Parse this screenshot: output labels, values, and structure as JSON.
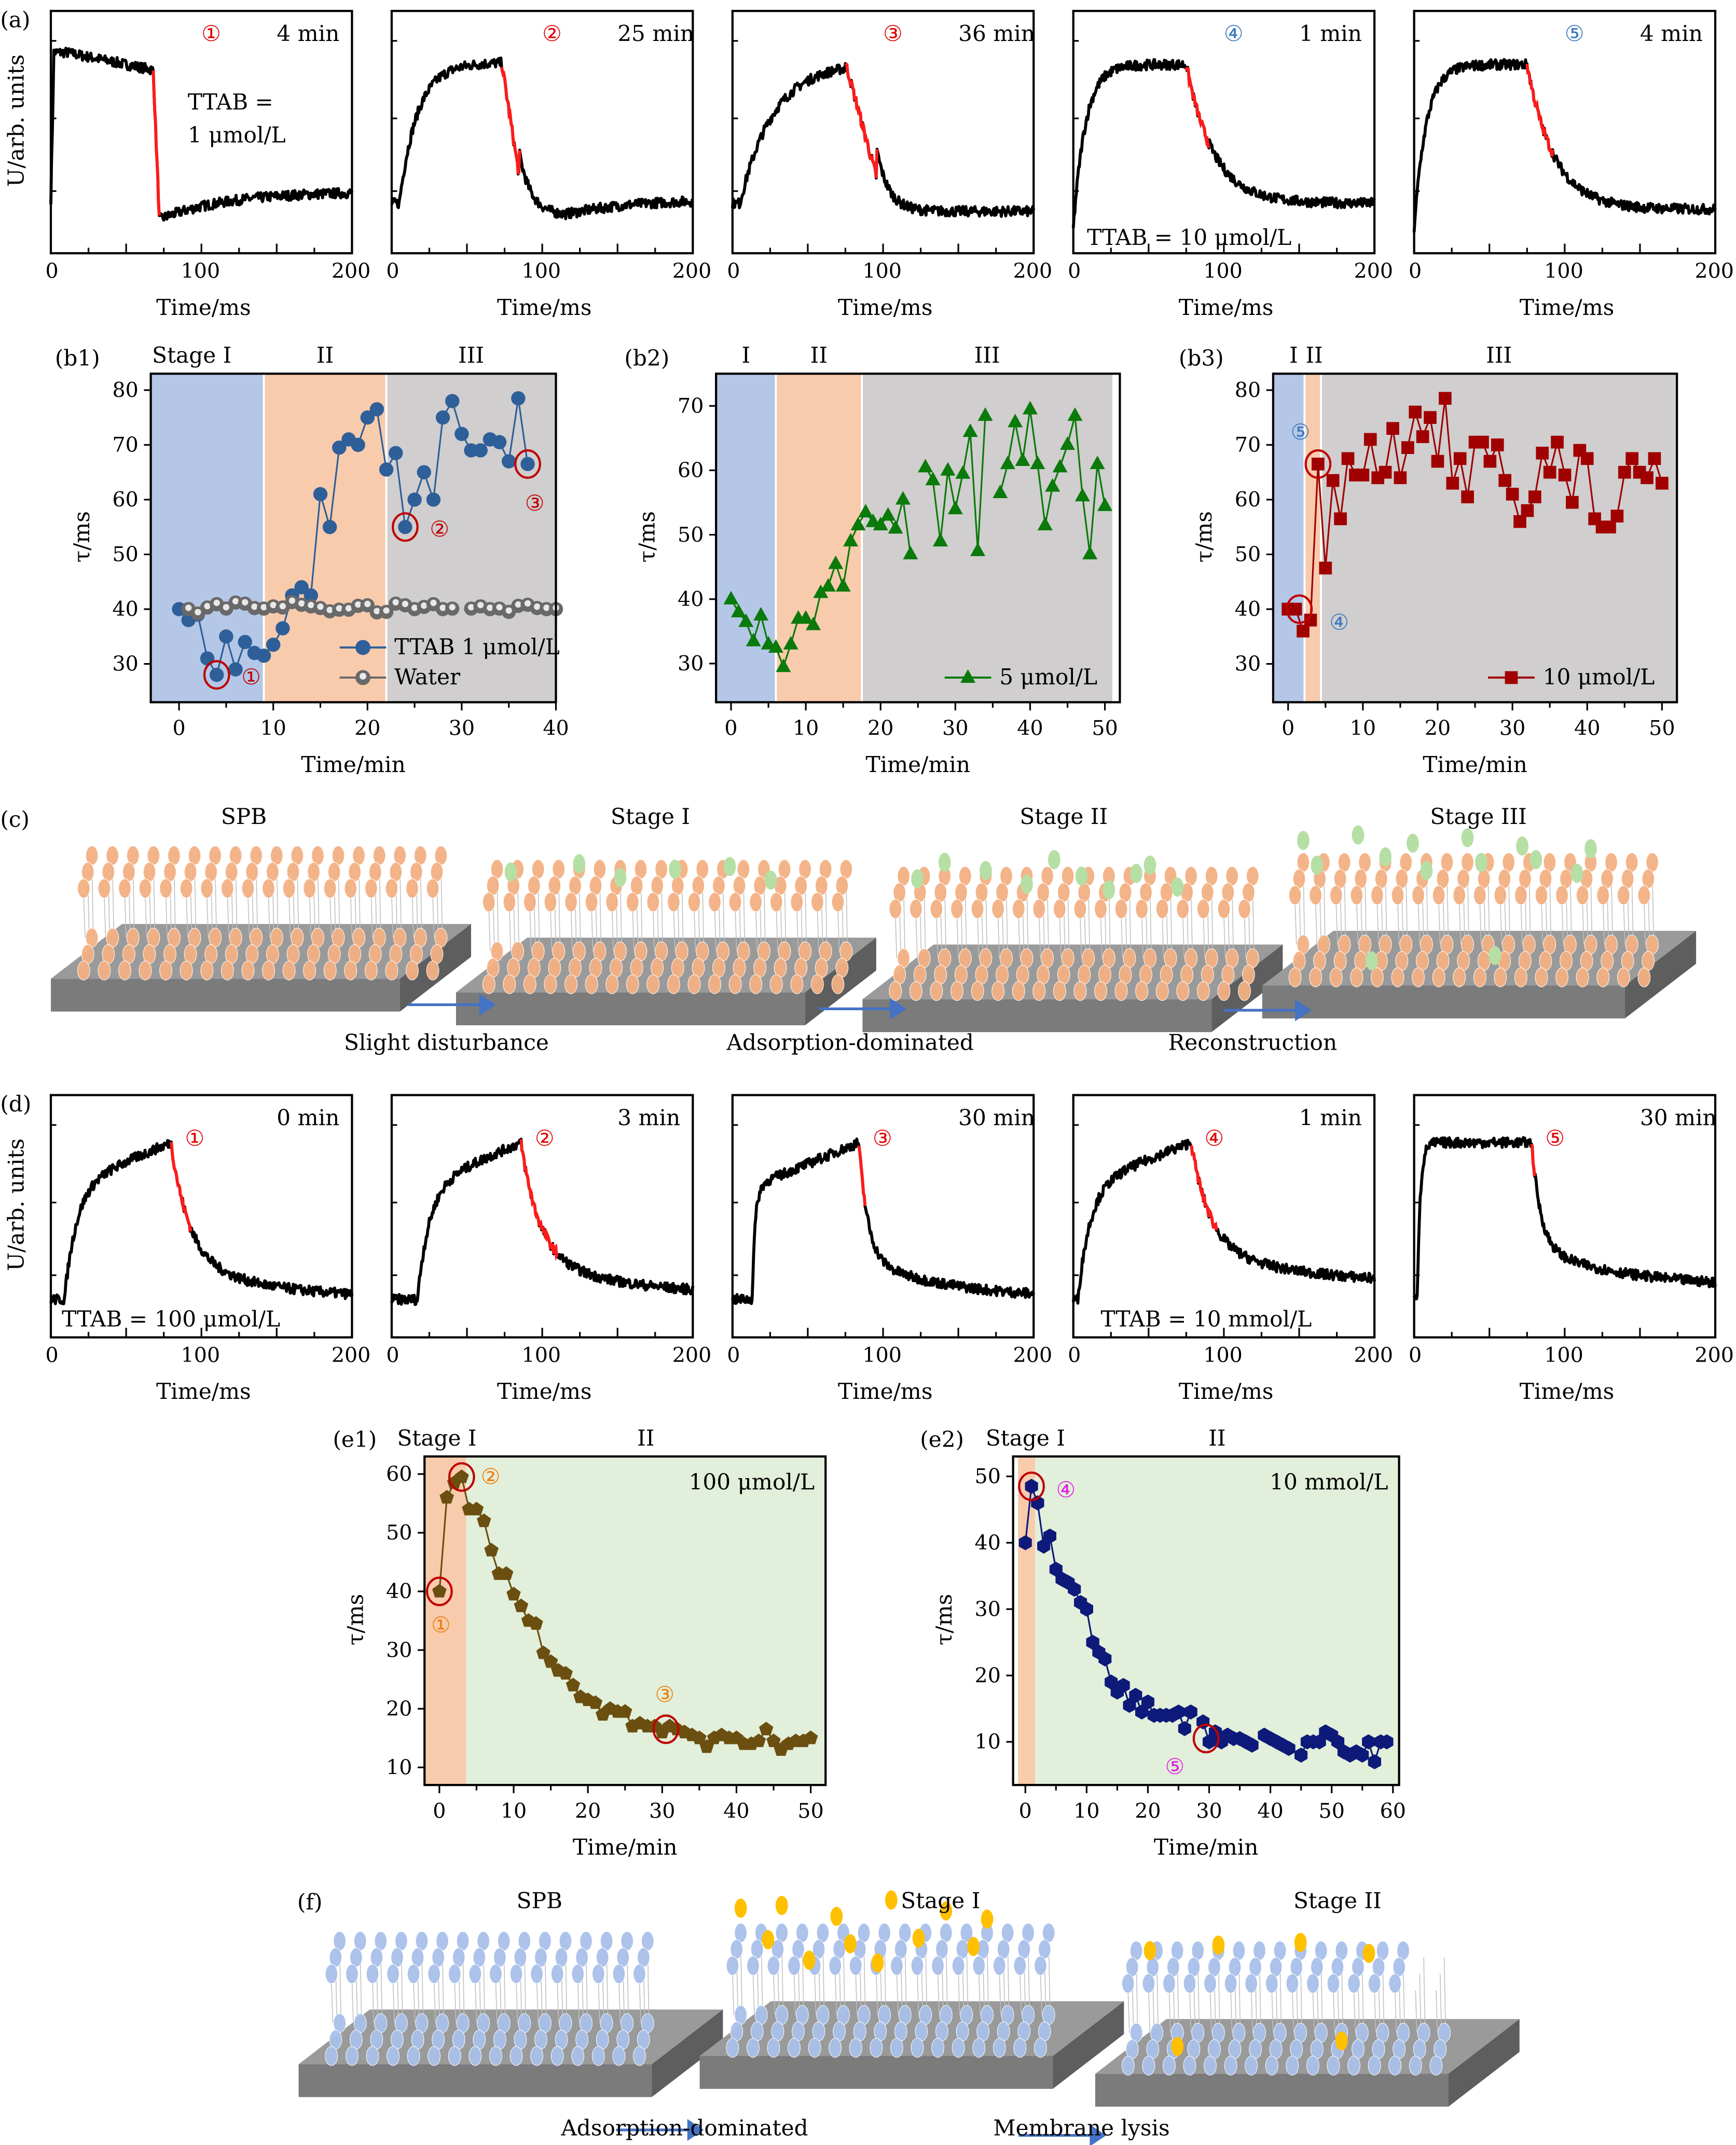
{
  "figure": {
    "panel_labels": {
      "a": "(a)",
      "b1": "(b1)",
      "b2": "(b2)",
      "b3": "(b3)",
      "c": "(c)",
      "d": "(d)",
      "e1": "(e1)",
      "e2": "(e2)",
      "f": "(f)"
    },
    "colors": {
      "stage1_bg": "#b4c7e7",
      "stage2_bg": "#f8cbad",
      "stage3_bg": "#d0cece",
      "green_bg": "#e2efda",
      "red_fit": "#ff0000",
      "circle": "#c00000",
      "blue_marker": "#2e5f98",
      "water_marker": "#696969",
      "green_marker": "#0a7a0a",
      "darkred_marker": "#a00000",
      "brown_marker": "#6b4f10",
      "navy_marker": "#0d1a7a",
      "lipid_orange": "#f4b183",
      "tt_green": "#b6dfa5",
      "lipid_blue": "#a9c0ea",
      "tt_yellow": "#ffc000",
      "arrow_blue": "#4472c4"
    }
  },
  "panel_a": {
    "ylabel": "U/arb. units",
    "xlabel": "Time/ms",
    "xticks": [
      "0",
      "100",
      "200"
    ],
    "plots": [
      {
        "marker": "①",
        "marker_color": "#e00000",
        "time": "4 min",
        "note": [
          "TTAB =",
          "1 μmol/L"
        ]
      },
      {
        "marker": "②",
        "marker_color": "#e00000",
        "time": "25 min",
        "note": []
      },
      {
        "marker": "③",
        "marker_color": "#e00000",
        "time": "36 min",
        "note": []
      },
      {
        "marker": "④",
        "marker_color": "#3a78c0",
        "time": "1 min",
        "note": [
          "TTAB = 10 μmol/L"
        ]
      },
      {
        "marker": "⑤",
        "marker_color": "#3a78c0",
        "time": "4 min",
        "note": []
      }
    ]
  },
  "panel_d": {
    "ylabel": "U/arb. units",
    "xlabel": "Time/ms",
    "xticks": [
      "0",
      "100",
      "200"
    ],
    "plots": [
      {
        "marker": "①",
        "marker_color": "#e00000",
        "time": "0 min",
        "note": [
          "TTAB = 100 μmol/L"
        ]
      },
      {
        "marker": "②",
        "marker_color": "#e00000",
        "time": "3 min",
        "note": []
      },
      {
        "marker": "③",
        "marker_color": "#e00000",
        "time": "30 min",
        "note": []
      },
      {
        "marker": "④",
        "marker_color": "#e00000",
        "time": "1 min",
        "note": [
          "TTAB = 10 mmol/L"
        ]
      },
      {
        "marker": "⑤",
        "marker_color": "#e00000",
        "time": "30 min",
        "note": []
      }
    ]
  },
  "chart_data": [
    {
      "id": "b1",
      "type": "line",
      "title": "",
      "xlabel": "Time/min",
      "ylabel": "τ/ms",
      "xlim": [
        -3,
        40
      ],
      "ylim": [
        23,
        83
      ],
      "xticks": [
        0,
        10,
        20,
        30,
        40
      ],
      "yticks": [
        30,
        40,
        50,
        60,
        70,
        80
      ],
      "stages": [
        {
          "label": "Stage I",
          "from": -3,
          "to": 9
        },
        {
          "label": "II",
          "from": 9,
          "to": 22
        },
        {
          "label": "III",
          "from": 22,
          "to": 40
        }
      ],
      "legend": "bottom-right",
      "series": [
        {
          "name": "TTAB 1 μmol/L",
          "marker": "circle",
          "color": "#2e5f98",
          "x": [
            0,
            1,
            2,
            3,
            4,
            5,
            6,
            7,
            8,
            9,
            10,
            11,
            12,
            13,
            14,
            15,
            16,
            17,
            18,
            19,
            20,
            21,
            22,
            23,
            24,
            25,
            26,
            27,
            28,
            29,
            30,
            31,
            32,
            33,
            34,
            35,
            36,
            37
          ],
          "y": [
            40,
            38,
            39,
            31,
            28,
            35,
            29,
            34,
            32,
            31.5,
            33.5,
            36.5,
            42.5,
            44,
            42.5,
            61,
            55,
            69.5,
            71,
            70,
            75,
            76.5,
            65.5,
            68.5,
            55,
            60,
            65,
            60,
            75,
            78,
            72,
            69,
            69,
            71,
            70.5,
            67,
            78.5,
            66.5
          ]
        },
        {
          "name": "Water",
          "marker": "circle-shaded",
          "color": "#696969",
          "x": [
            1,
            2,
            3,
            4,
            5,
            6,
            7,
            8,
            9,
            10,
            11,
            12,
            13,
            14,
            15,
            16,
            17,
            18,
            19,
            20,
            21,
            22,
            23,
            24,
            25,
            26,
            27,
            28,
            29,
            31,
            32,
            33,
            34,
            35,
            36,
            37,
            38,
            39,
            40
          ],
          "y": [
            40,
            39.2,
            40.3,
            40.9,
            40.1,
            41.2,
            41,
            40.2,
            40.1,
            40.5,
            40.3,
            41.3,
            40.8,
            40.5,
            40.2,
            39.6,
            39.9,
            39.9,
            40.6,
            40.7,
            39.4,
            39.5,
            41,
            40.7,
            40,
            40.4,
            40.9,
            40,
            40.1,
            40.1,
            40.5,
            40,
            40.1,
            39.5,
            40.6,
            40.8,
            40.2,
            40,
            40
          ],
          "gap_after_x": 29
        },
        {
          "name": "_markers",
          "points": [
            {
              "x": 4,
              "y": 28,
              "label": "①"
            },
            {
              "x": 24,
              "y": 55,
              "label": "②"
            },
            {
              "x": 37,
              "y": 66.5,
              "label": "③"
            }
          ]
        }
      ]
    },
    {
      "id": "b2",
      "type": "line",
      "title": "",
      "xlabel": "Time/min",
      "ylabel": "τ/ms",
      "xlim": [
        -2,
        52
      ],
      "ylim": [
        24,
        75
      ],
      "xticks": [
        0,
        10,
        20,
        30,
        40,
        50
      ],
      "yticks": [
        30,
        40,
        50,
        60,
        70
      ],
      "stages": [
        {
          "label": "I",
          "from": -2,
          "to": 6
        },
        {
          "label": "II",
          "from": 6,
          "to": 17.5
        },
        {
          "label": "III",
          "from": 17.5,
          "to": 51
        }
      ],
      "legend": "bottom-right",
      "series": [
        {
          "name": "5 μmol/L",
          "marker": "triangle",
          "color": "#0a7a0a",
          "x": [
            0,
            1,
            2,
            3,
            4,
            5,
            6,
            7,
            8,
            9,
            10,
            11,
            12,
            13,
            14,
            15,
            16,
            17,
            18,
            19,
            20,
            21,
            22,
            23,
            24,
            25,
            26,
            27,
            28,
            29,
            30,
            31,
            32,
            33,
            34,
            35,
            36,
            37,
            38,
            39,
            40,
            41,
            42,
            43,
            44,
            45,
            46,
            47,
            48,
            49,
            50
          ],
          "y": [
            40,
            38,
            36.5,
            33.5,
            37.5,
            33,
            32.5,
            29.5,
            33,
            37,
            37,
            36,
            41,
            42,
            45.5,
            42,
            49,
            51.5,
            53.5,
            52,
            51.5,
            53,
            51,
            55.5,
            47,
            null,
            60.5,
            58.5,
            49,
            60,
            54,
            59.5,
            66,
            47.5,
            68.5,
            null,
            56.5,
            61,
            67.5,
            61.5,
            69.5,
            61,
            51.5,
            57.5,
            60.5,
            64,
            68.5,
            56,
            47,
            61,
            54.5
          ]
        }
      ]
    },
    {
      "id": "b3",
      "type": "line",
      "title": "",
      "xlabel": "Time/min",
      "ylabel": "τ/ms",
      "xlim": [
        -2,
        52
      ],
      "ylim": [
        23,
        83
      ],
      "xticks": [
        0,
        10,
        20,
        30,
        40,
        50
      ],
      "yticks": [
        30,
        40,
        50,
        60,
        70,
        80
      ],
      "stages": [
        {
          "label": "I",
          "from": -2,
          "to": 2.2
        },
        {
          "label": "II",
          "from": 2.2,
          "to": 4.4
        },
        {
          "label": "III",
          "from": 4.4,
          "to": 52
        }
      ],
      "legend": "bottom-right",
      "series": [
        {
          "name": "10 μmol/L",
          "marker": "square",
          "color": "#a00000",
          "x": [
            0,
            1,
            2,
            3,
            4,
            5,
            6,
            7,
            8,
            9,
            10,
            11,
            12,
            13,
            14,
            15,
            16,
            17,
            18,
            19,
            20,
            21,
            22,
            23,
            24,
            25,
            26,
            27,
            28,
            29,
            30,
            31,
            32,
            33,
            34,
            35,
            36,
            37,
            38,
            39,
            40,
            41,
            42,
            43,
            44,
            45,
            46,
            47,
            48,
            49,
            50
          ],
          "y": [
            40,
            40,
            36,
            38,
            66.5,
            47.5,
            63.5,
            56.5,
            67.5,
            64.5,
            64.5,
            71,
            64,
            65,
            73,
            64,
            69.5,
            76,
            71.5,
            75,
            67,
            78.5,
            63,
            67.5,
            60.5,
            70.5,
            70.5,
            67,
            70,
            63.5,
            61,
            56,
            58,
            60.5,
            68.5,
            65,
            70.5,
            64.5,
            59.5,
            69,
            67.5,
            56.5,
            55,
            55,
            57,
            65,
            67.5,
            65,
            64,
            67.5,
            63
          ]
        },
        {
          "name": "_markers",
          "points": [
            {
              "x": 4,
              "y": 66.5,
              "label": "⑤"
            },
            {
              "x": 1.5,
              "y": 40,
              "label": "④"
            }
          ]
        }
      ]
    },
    {
      "id": "e1",
      "type": "line",
      "title": "",
      "xlabel": "Time/min",
      "ylabel": "τ/ms",
      "xlim": [
        -2,
        52
      ],
      "ylim": [
        7,
        63
      ],
      "xticks": [
        0,
        10,
        20,
        30,
        40,
        50
      ],
      "yticks": [
        10,
        20,
        30,
        40,
        50,
        60
      ],
      "stages": [
        {
          "label": "Stage I",
          "from": -2,
          "to": 3.6
        },
        {
          "label": "II",
          "from": 3.6,
          "to": 52
        }
      ],
      "annotation": "100 μmol/L",
      "series": [
        {
          "name": "100 μmol/L",
          "marker": "pentagon",
          "color": "#6b4f10",
          "x": [
            0,
            1,
            2,
            3,
            4,
            5,
            6,
            7,
            8,
            9,
            10,
            11,
            12,
            13,
            14,
            15,
            16,
            17,
            18,
            19,
            20,
            21,
            22,
            23,
            24,
            25,
            26,
            27,
            28,
            29,
            30,
            31,
            32,
            33,
            34,
            35,
            36,
            37,
            38,
            39,
            40,
            41,
            42,
            43,
            44,
            45,
            46,
            47,
            48,
            49,
            50
          ],
          "y": [
            40,
            56,
            58.5,
            59.5,
            54,
            54,
            52,
            47,
            43,
            43,
            39.5,
            37.5,
            35,
            34.5,
            29.5,
            28,
            26.5,
            26,
            24,
            22,
            21.5,
            21,
            19,
            20,
            19.5,
            19.5,
            17,
            17.5,
            17,
            17,
            16,
            17,
            16.5,
            16,
            15.5,
            15,
            13.5,
            15,
            15.5,
            15,
            15,
            14,
            14,
            14.5,
            16.5,
            14.5,
            13,
            14,
            14.5,
            14.5,
            15
          ]
        },
        {
          "name": "_markers",
          "points": [
            {
              "x": 0,
              "y": 40,
              "label": "①"
            },
            {
              "x": 3,
              "y": 59.5,
              "label": "②"
            },
            {
              "x": 30.5,
              "y": 16.5,
              "label": "③"
            }
          ]
        }
      ]
    },
    {
      "id": "e2",
      "type": "line",
      "title": "",
      "xlabel": "Time/min",
      "ylabel": "τ/ms",
      "xlim": [
        -2,
        61
      ],
      "ylim": [
        3.5,
        53
      ],
      "xticks": [
        0,
        10,
        20,
        30,
        40,
        50,
        60
      ],
      "yticks": [
        10,
        20,
        30,
        40,
        50
      ],
      "stages": [
        {
          "label": "Stage I",
          "from": -1.2,
          "to": 1.6
        },
        {
          "label": "II",
          "from": 1.6,
          "to": 61
        }
      ],
      "annotation": "10 mmol/L",
      "series": [
        {
          "name": "10 mmol/L",
          "marker": "hexagon",
          "color": "#0d1a7a",
          "x": [
            0,
            1,
            2,
            3,
            4,
            5,
            6,
            7,
            8,
            9,
            10,
            11,
            12,
            13,
            14,
            15,
            16,
            17,
            18,
            19,
            20,
            21,
            22,
            23,
            24,
            25,
            26,
            27,
            28,
            29,
            30,
            31,
            32,
            33,
            34,
            35,
            36,
            37,
            38,
            39,
            40,
            41,
            42,
            43,
            44,
            45,
            46,
            47,
            48,
            49,
            50,
            51,
            52,
            53,
            54,
            55,
            56,
            57,
            58,
            59
          ],
          "y": [
            40,
            48.5,
            46,
            39.5,
            41,
            36,
            34.5,
            34,
            33,
            31,
            30,
            25,
            23.5,
            22.5,
            19,
            17.5,
            18.5,
            15.5,
            17,
            14.5,
            16,
            14,
            14,
            14,
            14,
            14.5,
            12,
            14.5,
            null,
            13,
            10,
            11.5,
            10,
            11,
            10.5,
            10.5,
            10,
            9.5,
            null,
            11,
            10.5,
            10,
            9.5,
            9,
            null,
            8,
            10,
            10,
            10,
            11.5,
            11,
            10,
            8.5,
            8,
            8.5,
            8,
            10,
            7,
            10,
            10
          ]
        },
        {
          "name": "_markers",
          "points": [
            {
              "x": 1,
              "y": 48.5,
              "label": "④"
            },
            {
              "x": 29.5,
              "y": 10.5,
              "label": "⑤"
            }
          ]
        }
      ]
    }
  ],
  "marker_label_colors": {
    "b1": "#c00000",
    "b3": "#3a78c0",
    "e1": "#f07f09",
    "e2": "#e020e0"
  },
  "panel_c": {
    "stages": [
      "SPB",
      "Stage I",
      "Stage II",
      "Stage III"
    ],
    "arrows": [
      "Slight disturbance",
      "Adsorption-dominated",
      "Reconstruction"
    ]
  },
  "panel_f": {
    "stages": [
      "SPB",
      "Stage I",
      "Stage II"
    ],
    "arrows": [
      "Adsorption-dominated",
      "Membrane lysis"
    ]
  }
}
